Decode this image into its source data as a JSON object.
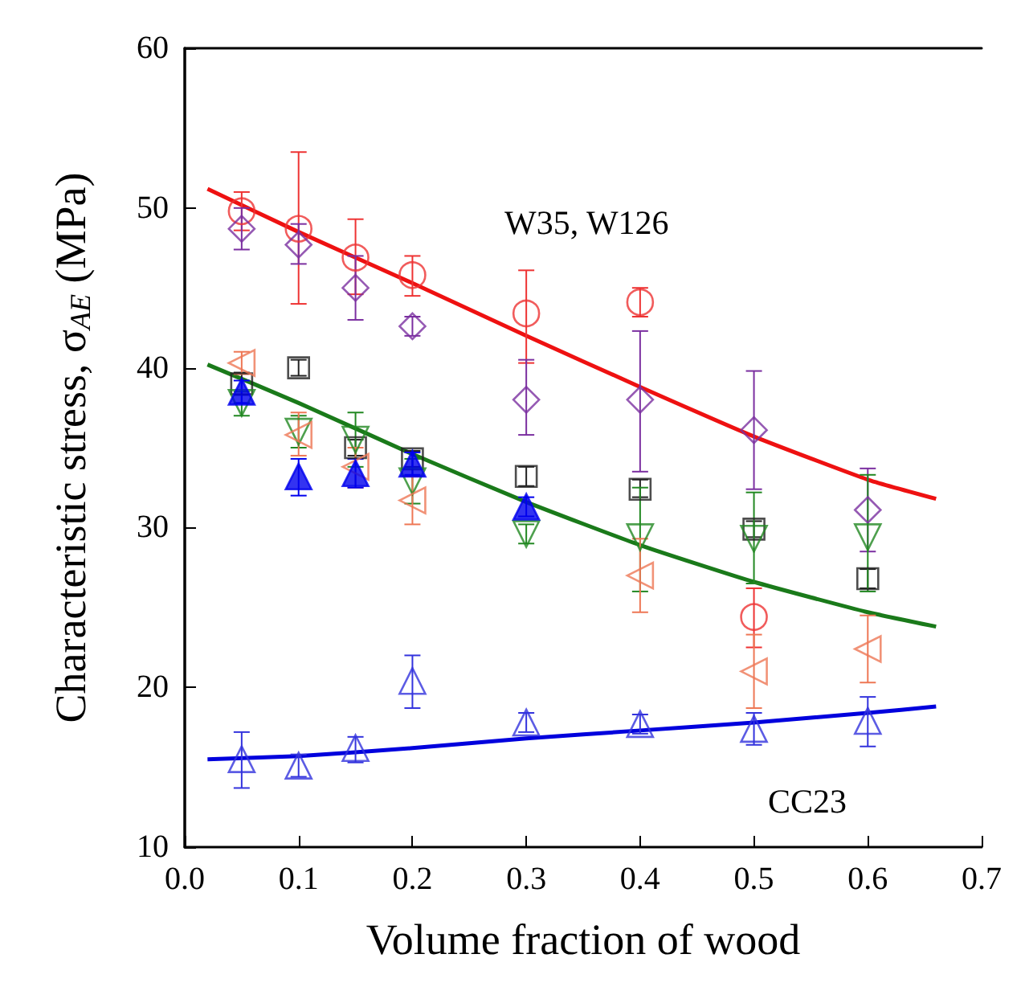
{
  "chart_data": {
    "type": "scatter",
    "xlabel": "Volume fraction of wood",
    "ylabel": "Characteristic stress, σ$_{AE}$ (MPa)",
    "xlim": [
      0,
      0.7
    ],
    "ylim": [
      10,
      60
    ],
    "xticks": [
      {
        "value": 0,
        "label": "0.0"
      },
      {
        "value": 0.1,
        "label": "0.1"
      },
      {
        "value": 0.2,
        "label": "0.2"
      },
      {
        "value": 0.3,
        "label": "0.3"
      },
      {
        "value": 0.4,
        "label": "0.4"
      },
      {
        "value": 0.5,
        "label": "0.5"
      },
      {
        "value": 0.6,
        "label": "0.6"
      },
      {
        "value": 0.7,
        "label": "0.7"
      }
    ],
    "yticks": [
      10,
      20,
      30,
      40,
      50,
      60
    ],
    "annotations": [
      "W35, W126",
      "CC23"
    ],
    "series": [
      {
        "marker": "circle",
        "color": "#ee3333",
        "x": [
          0.05,
          0.1,
          0.15,
          0.2,
          0.3,
          0.4,
          0.5
        ],
        "values": [
          49.8,
          48.7,
          46.9,
          45.8,
          43.4,
          44.1,
          24.4
        ],
        "errors": [
          [
            48.6,
            51
          ],
          [
            44,
            53.5
          ],
          [
            44.6,
            49.3
          ],
          [
            44.5,
            47
          ],
          [
            40.3,
            46.1
          ],
          [
            43.2,
            45
          ],
          [
            22.5,
            26.2
          ]
        ]
      },
      {
        "marker": "diamond",
        "color": "#7b2fa0",
        "x": [
          0.05,
          0.1,
          0.15,
          0.2,
          0.3,
          0.4,
          0.5,
          0.6
        ],
        "values": [
          48.7,
          47.7,
          45,
          42.6,
          38,
          38,
          36.1,
          31.1
        ],
        "errors": [
          [
            47.4,
            50
          ],
          [
            46.5,
            49
          ],
          [
            43,
            47
          ],
          [
            42,
            43.2
          ],
          [
            35.8,
            40.5
          ],
          [
            33.5,
            42.3
          ],
          [
            32.4,
            39.8
          ],
          [
            28.5,
            33.7
          ]
        ]
      },
      {
        "marker": "square",
        "color": "#222222",
        "x": [
          0.05,
          0.1,
          0.15,
          0.2,
          0.3,
          0.4,
          0.5,
          0.6
        ],
        "values": [
          39,
          40,
          35,
          34.3,
          33.2,
          32.4,
          29.9,
          26.8
        ],
        "errors": [
          [
            38.3,
            39.7
          ],
          [
            39.5,
            40.5
          ],
          [
            34.5,
            35.5
          ],
          [
            33.8,
            34.8
          ],
          [
            32.6,
            33.8
          ],
          [
            31.9,
            33
          ],
          [
            29.4,
            30.4
          ],
          [
            26.2,
            27.4
          ]
        ]
      },
      {
        "marker": "triangle-down",
        "color": "#228822",
        "x": [
          0.05,
          0.1,
          0.15,
          0.2,
          0.3,
          0.4,
          0.5,
          0.6
        ],
        "values": [
          37.8,
          36,
          35.5,
          32.9,
          29.6,
          29.4,
          29.3,
          29.4
        ],
        "errors": [
          [
            37,
            38.5
          ],
          [
            35,
            37
          ],
          [
            33.8,
            37.2
          ],
          [
            31.5,
            34.3
          ],
          [
            29,
            30.2
          ],
          [
            26,
            32.5
          ],
          [
            26.5,
            32.2
          ],
          [
            26,
            33.3
          ]
        ]
      },
      {
        "marker": "triangle-left",
        "color": "#ee7755",
        "x": [
          0.05,
          0.1,
          0.15,
          0.2,
          0.3,
          0.4,
          0.5,
          0.6
        ],
        "values": [
          40.3,
          35.8,
          33.8,
          31.7,
          null,
          27,
          21,
          22.4
        ],
        "errors": [
          [
            39.6,
            41
          ],
          [
            34.5,
            37.2
          ],
          [
            32.5,
            35
          ],
          [
            30.2,
            33.2
          ],
          null,
          [
            24.7,
            29.3
          ],
          [
            18.7,
            23.3
          ],
          [
            20.3,
            24.5
          ]
        ]
      },
      {
        "marker": "triangle-filled",
        "color": "#0000ee",
        "x": [
          0.05,
          0.1,
          0.15,
          0.2,
          0.3
        ],
        "values": [
          38.5,
          33.2,
          33.4,
          34,
          31.3
        ],
        "errors": [
          [
            37.8,
            39.2
          ],
          [
            32,
            34.3
          ],
          [
            32.5,
            34.3
          ],
          [
            33.3,
            34.7
          ],
          [
            30.7,
            31.9
          ]
        ]
      },
      {
        "marker": "triangle",
        "color": "#3333dd",
        "x": [
          0.05,
          0.1,
          0.15,
          0.2,
          0.3,
          0.4,
          0.5,
          0.6
        ],
        "values": [
          15.5,
          15.1,
          16.2,
          20.4,
          17.8,
          17.7,
          17.4,
          17.9
        ],
        "errors": [
          [
            13.7,
            17.2
          ],
          [
            14.4,
            15.8
          ],
          [
            15.3,
            16.9
          ],
          [
            18.7,
            22
          ],
          [
            17.2,
            18.4
          ],
          [
            17.1,
            18.3
          ],
          [
            16.4,
            18.4
          ],
          [
            16.3,
            19.4
          ]
        ]
      },
      {
        "type": "line",
        "marker": "none",
        "color": "#ee1111",
        "x": [
          0.02,
          0.1,
          0.2,
          0.3,
          0.4,
          0.5,
          0.6,
          0.66
        ],
        "values": [
          51.2,
          48.5,
          45.3,
          42,
          38.8,
          35.7,
          33,
          31.8
        ]
      },
      {
        "type": "line",
        "marker": "none",
        "color": "#1a7a1a",
        "x": [
          0.02,
          0.1,
          0.2,
          0.3,
          0.4,
          0.5,
          0.6,
          0.66
        ],
        "values": [
          40.2,
          37.8,
          34.6,
          31.6,
          28.9,
          26.6,
          24.7,
          23.8
        ]
      },
      {
        "type": "line",
        "marker": "none",
        "color": "#0000dd",
        "x": [
          0.02,
          0.1,
          0.2,
          0.3,
          0.4,
          0.5,
          0.6,
          0.66
        ],
        "values": [
          15.5,
          15.7,
          16.2,
          16.8,
          17.3,
          17.8,
          18.4,
          18.8
        ]
      }
    ]
  }
}
